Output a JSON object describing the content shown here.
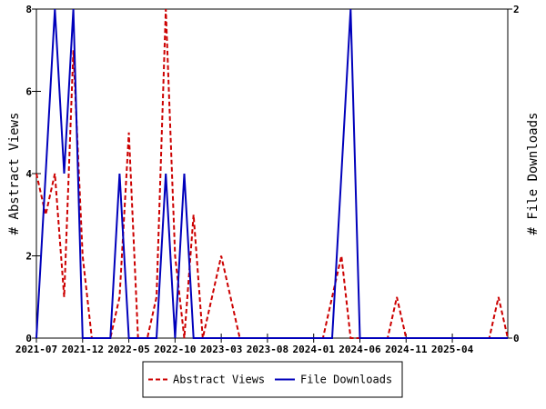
{
  "chart_data": {
    "type": "line",
    "x_tick_labels": [
      "2021-07",
      "2021-12",
      "2022-05",
      "2022-10",
      "2023-03",
      "2023-08",
      "2024-01",
      "2024-06",
      "2024-11",
      "2025-04"
    ],
    "left_axis": {
      "label": "# Abstract Views",
      "ylim": [
        0,
        8
      ],
      "ticks": [
        0,
        2,
        4,
        6,
        8
      ]
    },
    "right_axis": {
      "label": "# File Downloads",
      "ylim": [
        0,
        2
      ],
      "ticks": [
        0,
        2
      ]
    },
    "grid": false,
    "legend_position": "bottom-center",
    "months_start": "2021-07",
    "series": [
      {
        "name": "Abstract Views",
        "axis": "left",
        "color": "#cc0000",
        "dash": "dashed",
        "x": [
          "2021-07",
          "2021-08",
          "2021-09",
          "2021-10",
          "2021-11",
          "2021-12",
          "2022-01",
          "2022-02",
          "2022-03",
          "2022-04",
          "2022-05",
          "2022-06",
          "2022-07",
          "2022-08",
          "2022-09",
          "2022-10",
          "2022-11",
          "2022-12",
          "2023-01",
          "2023-02",
          "2023-03",
          "2023-04",
          "2023-05",
          "2023-06",
          "2023-07",
          "2023-08",
          "2023-09",
          "2023-10",
          "2023-11",
          "2023-12",
          "2024-01",
          "2024-02",
          "2024-03",
          "2024-04",
          "2024-05",
          "2024-06",
          "2024-07",
          "2024-08",
          "2024-09",
          "2024-10",
          "2024-11",
          "2024-12",
          "2025-01",
          "2025-02",
          "2025-03",
          "2025-04",
          "2025-05",
          "2025-06",
          "2025-07",
          "2025-08",
          "2025-09",
          "2025-10"
        ],
        "values": [
          4,
          3,
          4,
          1,
          7,
          2,
          0,
          0,
          0,
          1,
          5,
          0,
          0,
          1,
          8,
          2,
          0,
          3,
          0,
          1,
          2,
          1,
          0,
          0,
          0,
          0,
          0,
          0,
          0,
          0,
          0,
          0,
          1,
          2,
          0,
          0,
          0,
          0,
          0,
          1,
          0,
          0,
          0,
          0,
          0,
          0,
          0,
          0,
          0,
          0,
          1,
          0
        ]
      },
      {
        "name": "File Downloads",
        "axis": "right",
        "color": "#0000bb",
        "dash": "solid",
        "x": [
          "2021-07",
          "2021-08",
          "2021-09",
          "2021-10",
          "2021-11",
          "2021-12",
          "2022-01",
          "2022-02",
          "2022-03",
          "2022-04",
          "2022-05",
          "2022-06",
          "2022-07",
          "2022-08",
          "2022-09",
          "2022-10",
          "2022-11",
          "2022-12",
          "2023-01",
          "2023-02",
          "2023-03",
          "2023-04",
          "2023-05",
          "2023-06",
          "2023-07",
          "2023-08",
          "2023-09",
          "2023-10",
          "2023-11",
          "2023-12",
          "2024-01",
          "2024-02",
          "2024-03",
          "2024-04",
          "2024-05",
          "2024-06",
          "2024-07",
          "2024-08",
          "2024-09",
          "2024-10",
          "2024-11",
          "2024-12",
          "2025-01",
          "2025-02",
          "2025-03",
          "2025-04",
          "2025-05",
          "2025-06",
          "2025-07",
          "2025-08",
          "2025-09",
          "2025-10"
        ],
        "values": [
          0,
          1,
          2,
          1,
          2,
          0,
          0,
          0,
          0,
          1,
          0,
          0,
          0,
          0,
          1,
          0,
          1,
          0,
          0,
          0,
          0,
          0,
          0,
          0,
          0,
          0,
          0,
          0,
          0,
          0,
          0,
          0,
          0,
          1,
          2,
          0,
          0,
          0,
          0,
          0,
          0,
          0,
          0,
          0,
          0,
          0,
          0,
          0,
          0,
          0,
          0,
          0
        ]
      }
    ]
  }
}
